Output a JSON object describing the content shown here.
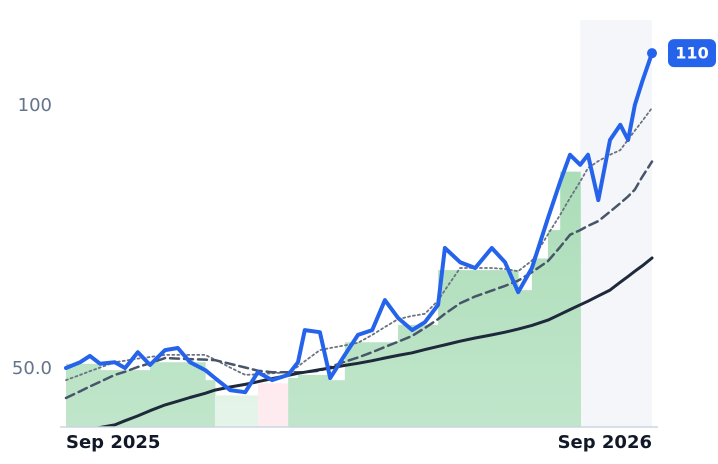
{
  "chart_data": {
    "type": "line",
    "x": [
      0,
      0.29,
      0.49,
      0.7,
      1.0,
      1.21,
      1.47,
      1.72,
      2.03,
      2.29,
      2.54,
      2.85,
      3.05,
      3.36,
      3.67,
      3.93,
      4.22,
      4.55,
      4.75,
      4.89,
      5.2,
      5.41,
      5.71,
      5.98,
      6.27,
      6.53,
      6.8,
      7.09,
      7.35,
      7.62,
      7.76,
      8.07,
      8.38,
      8.72,
      8.99,
      9.26,
      9.54,
      9.87,
      10.12,
      10.32,
      10.53,
      10.69,
      10.9,
      11.14,
      11.35,
      11.51,
      11.65,
      11.8,
      12
    ],
    "series": [
      {
        "color": "#6b7280",
        "style": "dotted",
        "width": 1.8,
        "values": [
          47.9,
          48.9,
          49.6,
          50.3,
          51.3,
          51.6,
          52,
          52.3,
          52.7,
          52.7,
          52.7,
          52.7,
          51.8,
          50.3,
          48.9,
          49,
          49.2,
          49.4,
          50.5,
          51.5,
          53.6,
          54,
          54.5,
          55,
          56.5,
          58,
          59.5,
          60.1,
          60.5,
          63,
          65,
          69.2,
          69.2,
          69.2,
          69,
          68.6,
          70.6,
          75.6,
          79.3,
          82.5,
          85.6,
          88.2,
          89.5,
          90.7,
          91.6,
          93.6,
          95.3,
          97.1,
          99.6
        ]
      },
      {
        "color": "#475569",
        "style": "dashed",
        "width": 2.5,
        "values": [
          44.5,
          45.8,
          46.7,
          47.6,
          48.9,
          49.5,
          50.4,
          51.1,
          52.1,
          52,
          51.9,
          51.8,
          51.7,
          51,
          50.3,
          49.7,
          49.4,
          49.4,
          49.4,
          49.4,
          49.7,
          50.4,
          51.4,
          52.2,
          53.2,
          54.2,
          55.2,
          56.3,
          57.8,
          59.5,
          60.5,
          62.5,
          63.8,
          64.9,
          65.8,
          66.8,
          68.4,
          70.5,
          73.2,
          75.5,
          76.4,
          77.2,
          78.1,
          79.9,
          81.5,
          82.8,
          84.1,
          86.5,
          89.4
        ]
      },
      {
        "color": "#1e293b",
        "style": "solid",
        "width": 3,
        "values": [
          37.8,
          38.3,
          38.6,
          38.9,
          39.4,
          40.2,
          41.1,
          42.1,
          43.2,
          43.9,
          44.6,
          45.4,
          46,
          46.6,
          47.1,
          47.6,
          48.2,
          48.8,
          49.2,
          49.4,
          49.9,
          50.2,
          50.7,
          51.1,
          51.6,
          52.1,
          52.6,
          53.1,
          53.7,
          54.3,
          54.6,
          55.3,
          55.9,
          56.5,
          57,
          57.6,
          58.3,
          59.3,
          60.4,
          61.3,
          62.2,
          62.9,
          63.9,
          65,
          66.5,
          67.6,
          68.6,
          69.6,
          71.1
        ]
      },
      {
        "color": "#2563eb",
        "style": "solid",
        "width": 4,
        "last_label": true,
        "values": [
          50.2,
          51.3,
          52.5,
          51,
          51.3,
          50.2,
          53.2,
          50.8,
          53.6,
          54,
          51.3,
          49.8,
          48.3,
          46,
          45.6,
          49.4,
          47.9,
          48.9,
          51.3,
          57.4,
          57,
          48.3,
          52.7,
          56.5,
          57.4,
          63.1,
          59.7,
          57.4,
          58.9,
          62.2,
          73,
          70.3,
          69.2,
          73,
          70.3,
          64.6,
          69.2,
          78.7,
          85.6,
          90.7,
          88.8,
          90.7,
          82.1,
          93.5,
          96.4,
          93.5,
          100.2,
          104.6,
          110
        ]
      }
    ],
    "bars": {
      "bins": [
        0,
        0.29,
        0.49,
        0.7,
        1.0,
        1.21,
        1.47,
        1.72,
        2.03,
        2.29,
        2.54,
        2.85,
        3.05,
        3.36,
        3.67,
        3.93,
        4.22,
        4.55,
        4.75,
        4.89,
        5.2,
        5.41,
        5.71,
        5.98,
        6.27,
        6.53,
        6.8,
        7.09,
        7.35,
        7.62,
        7.76,
        8.07,
        8.38,
        8.72,
        8.99,
        9.26,
        9.54,
        9.87,
        10.12,
        10.32,
        10.53
      ],
      "values": [
        51,
        51,
        51,
        49.8,
        49.8,
        49.8,
        49.8,
        51.3,
        51.3,
        51.3,
        51.3,
        47.9,
        45,
        45,
        45,
        47.3,
        47.3,
        48.3,
        48.9,
        48.9,
        48.9,
        47.9,
        55.1,
        55.1,
        55.1,
        55.1,
        58.4,
        58.4,
        58.4,
        68.8,
        68.8,
        68.8,
        68.8,
        68.8,
        68.8,
        65,
        71,
        76.4,
        87.5,
        87.5
      ],
      "colors": [
        "#9fd8ae",
        "#9fd8ae",
        "#9fd8ae",
        "#9fd8ae",
        "#9fd8ae",
        "#9fd8ae",
        "#9fd8ae",
        "#9fd8ae",
        "#9fd8ae",
        "#9fd8ae",
        "#9fd8ae",
        "#9fd8ae",
        "#d6efdc",
        "#d6efdc",
        "#d6efdc",
        "#fde1e7",
        "#fde1e7",
        "#9fd8ae",
        "#9fd8ae",
        "#9fd8ae",
        "#9fd8ae",
        "#9fd8ae",
        "#9fd8ae",
        "#9fd8ae",
        "#9fd8ae",
        "#9fd8ae",
        "#9fd8ae",
        "#9fd8ae",
        "#9fd8ae",
        "#9fd8ae",
        "#9fd8ae",
        "#9fd8ae",
        "#9fd8ae",
        "#9fd8ae",
        "#9fd8ae",
        "#9fd8ae",
        "#9fd8ae",
        "#9fd8ae",
        "#9fd8ae",
        "#9fd8ae"
      ]
    },
    "xlim": [
      0,
      12
    ],
    "xticks": [
      {
        "value": 0,
        "label": "Sep 2025"
      },
      {
        "value": 12,
        "label": "Sep 2026"
      }
    ],
    "ylim": [
      39,
      116.3
    ],
    "yticks": [
      {
        "value": 50,
        "label": "50.0"
      },
      100
    ]
  }
}
